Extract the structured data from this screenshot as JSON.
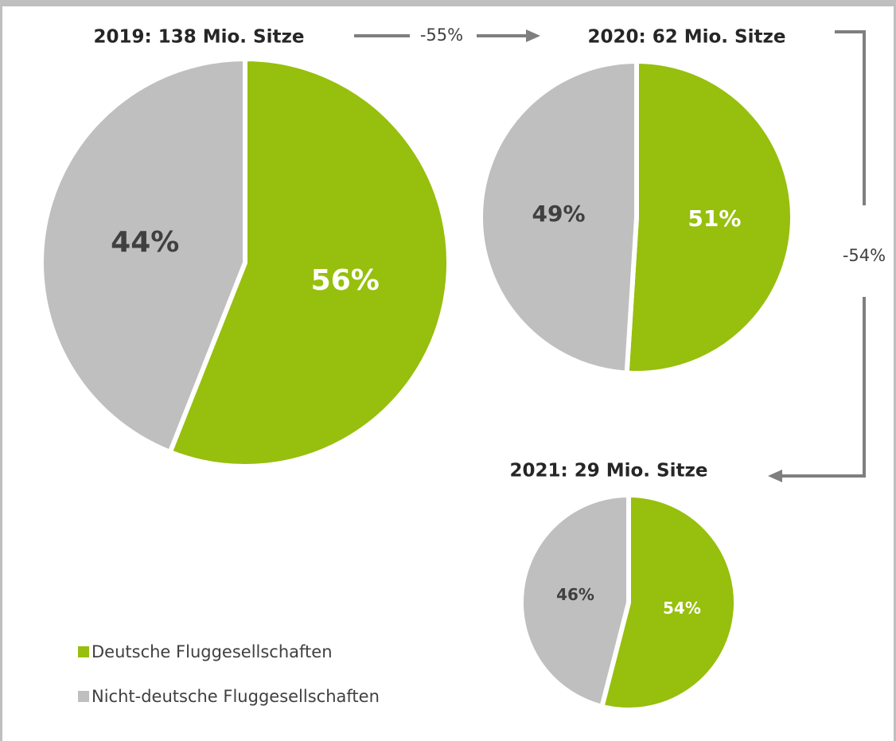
{
  "chart_data": [
    {
      "type": "pie",
      "title": "2019: 138 Mio. Sitze",
      "values": [
        56,
        44
      ],
      "value_labels": [
        "56%",
        "44%"
      ]
    },
    {
      "type": "pie",
      "title": "2020: 62 Mio. Sitze",
      "values": [
        51,
        49
      ],
      "value_labels": [
        "51%",
        "49%"
      ]
    },
    {
      "type": "pie",
      "title": "2021: 29 Mio. Sitze",
      "values": [
        54,
        46
      ],
      "value_labels": [
        "54%",
        "46%"
      ]
    }
  ],
  "legend": {
    "categories": [
      "Deutsche Fluggesellschaften",
      "Nicht-deutsche Fluggesellschaften"
    ],
    "colors": [
      "#97bf0d",
      "#bfbfbf"
    ]
  },
  "annotations": [
    "-55%",
    "-54%"
  ]
}
